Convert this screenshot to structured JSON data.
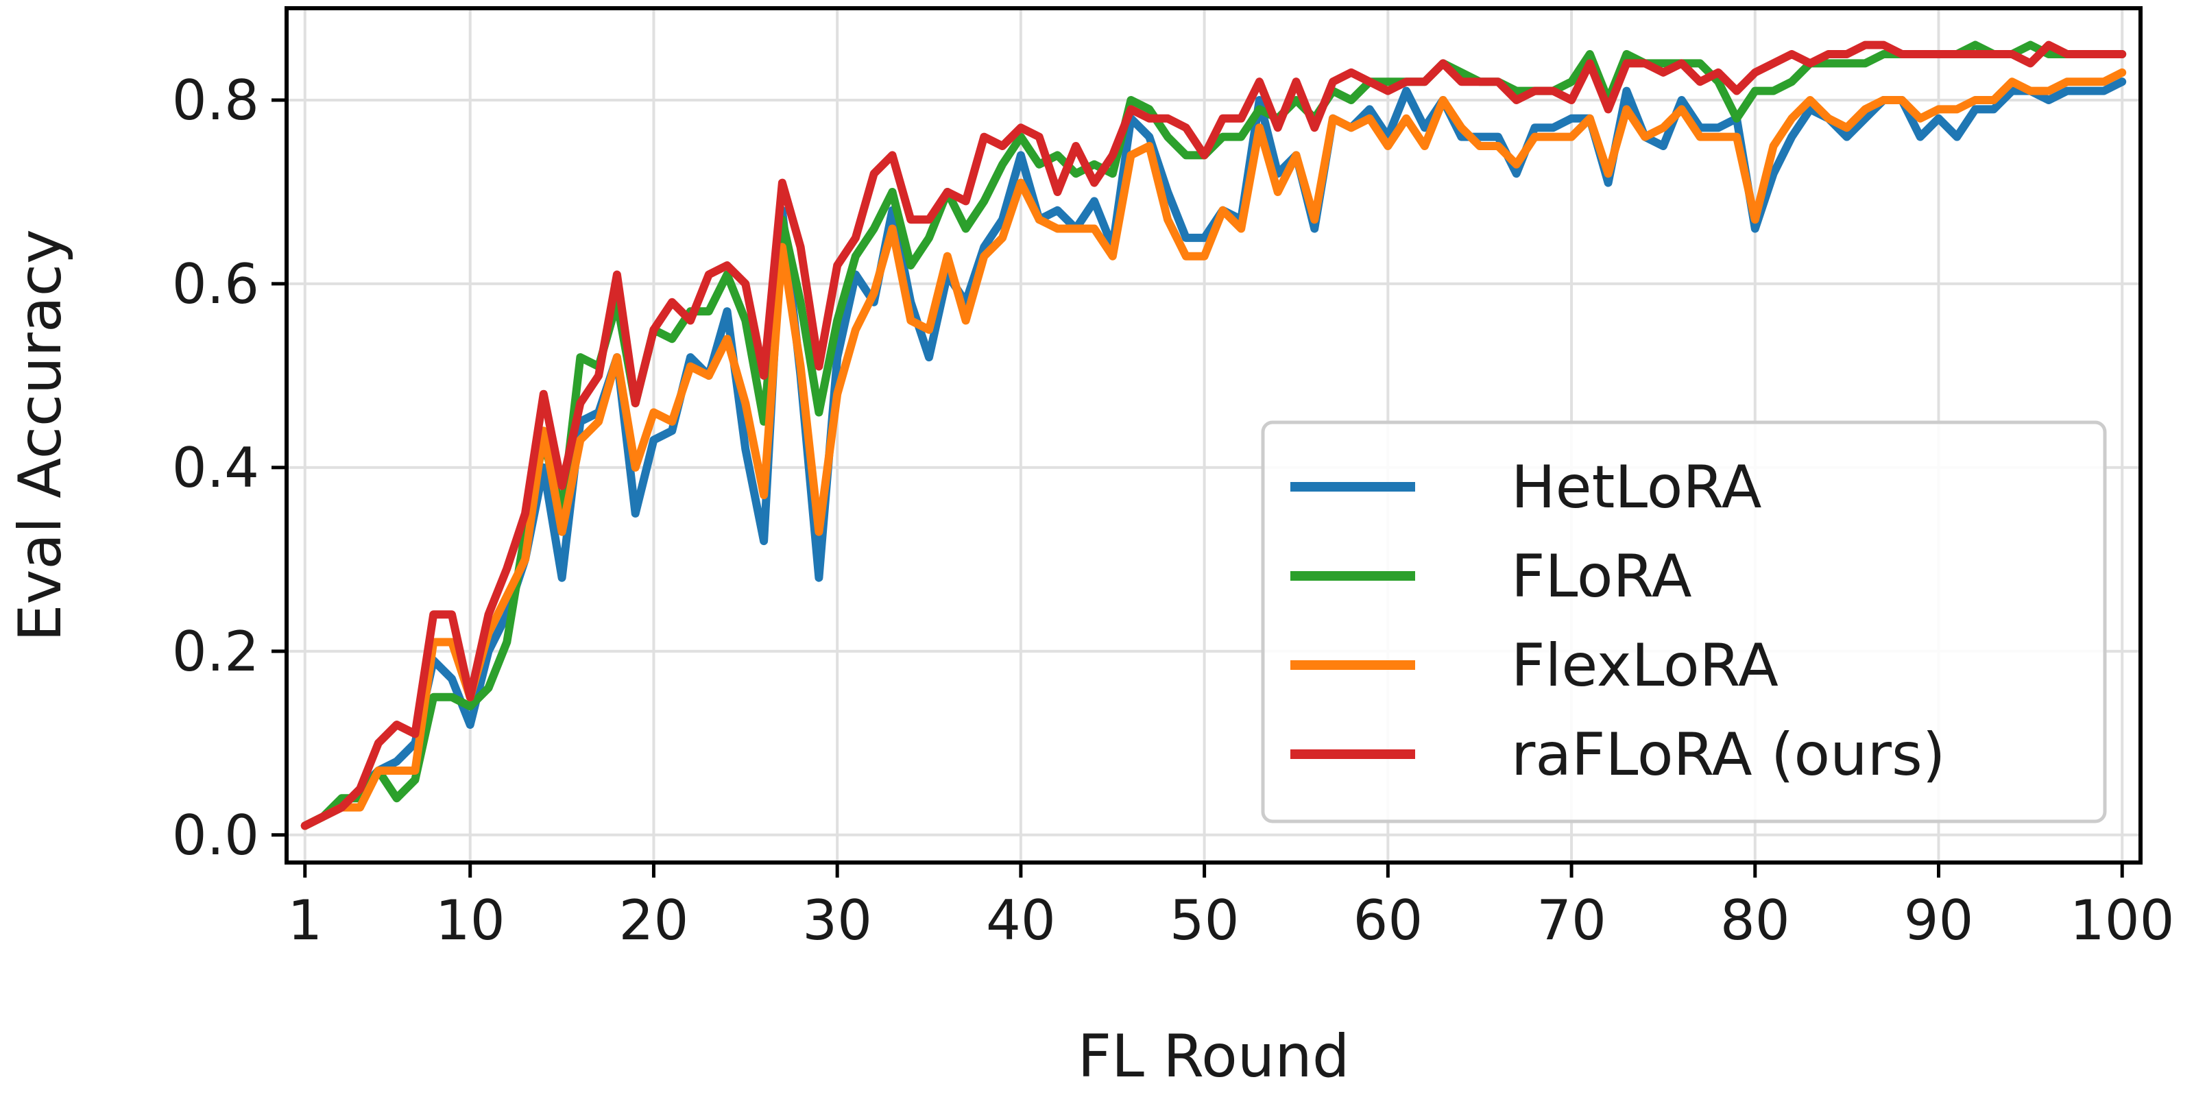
{
  "chart_data": {
    "type": "line",
    "title": "",
    "xlabel": "FL Round",
    "ylabel": "Eval Accuracy",
    "xlim": [
      0,
      101
    ],
    "ylim": [
      -0.03,
      0.9
    ],
    "x_ticks": [
      1,
      10,
      20,
      30,
      40,
      50,
      60,
      70,
      80,
      90,
      100
    ],
    "y_ticks": [
      0.0,
      0.2,
      0.4,
      0.6,
      0.8
    ],
    "y_tick_labels": [
      "0.0",
      "0.2",
      "0.4",
      "0.6",
      "0.8"
    ],
    "grid": true,
    "legend_position": "lower-right",
    "series": [
      {
        "name": "HetLoRA",
        "color": "#1f77b4",
        "x": [
          1,
          2,
          3,
          4,
          5,
          6,
          7,
          8,
          9,
          10,
          11,
          12,
          13,
          14,
          15,
          16,
          17,
          18,
          19,
          20,
          21,
          22,
          23,
          24,
          25,
          26,
          27,
          28,
          29,
          30,
          31,
          32,
          33,
          34,
          35,
          36,
          37,
          38,
          39,
          40,
          41,
          42,
          43,
          44,
          45,
          46,
          47,
          48,
          49,
          50,
          51,
          52,
          53,
          54,
          55,
          56,
          57,
          58,
          59,
          60,
          61,
          62,
          63,
          64,
          65,
          66,
          67,
          68,
          69,
          70,
          71,
          72,
          73,
          74,
          75,
          76,
          77,
          78,
          79,
          80,
          81,
          82,
          83,
          84,
          85,
          86,
          87,
          88,
          89,
          90,
          91,
          92,
          93,
          94,
          95,
          96,
          97,
          98,
          99,
          100
        ],
        "values": [
          0.01,
          0.02,
          0.03,
          0.05,
          0.07,
          0.08,
          0.1,
          0.19,
          0.17,
          0.12,
          0.2,
          0.24,
          0.3,
          0.4,
          0.28,
          0.45,
          0.46,
          0.52,
          0.35,
          0.43,
          0.44,
          0.52,
          0.5,
          0.57,
          0.42,
          0.32,
          0.68,
          0.5,
          0.28,
          0.52,
          0.61,
          0.58,
          0.68,
          0.58,
          0.52,
          0.61,
          0.58,
          0.64,
          0.67,
          0.74,
          0.67,
          0.68,
          0.66,
          0.69,
          0.64,
          0.78,
          0.76,
          0.7,
          0.65,
          0.65,
          0.68,
          0.67,
          0.8,
          0.72,
          0.74,
          0.66,
          0.78,
          0.77,
          0.79,
          0.76,
          0.81,
          0.77,
          0.8,
          0.76,
          0.76,
          0.76,
          0.72,
          0.77,
          0.77,
          0.78,
          0.78,
          0.71,
          0.81,
          0.76,
          0.75,
          0.8,
          0.77,
          0.77,
          0.78,
          0.66,
          0.72,
          0.76,
          0.79,
          0.78,
          0.76,
          0.78,
          0.8,
          0.8,
          0.76,
          0.78,
          0.76,
          0.79,
          0.79,
          0.81,
          0.81,
          0.8,
          0.81,
          0.81,
          0.81,
          0.82
        ]
      },
      {
        "name": "FLoRA",
        "color": "#2ca02c",
        "x": [
          1,
          2,
          3,
          4,
          5,
          6,
          7,
          8,
          9,
          10,
          11,
          12,
          13,
          14,
          15,
          16,
          17,
          18,
          19,
          20,
          21,
          22,
          23,
          24,
          25,
          26,
          27,
          28,
          29,
          30,
          31,
          32,
          33,
          34,
          35,
          36,
          37,
          38,
          39,
          40,
          41,
          42,
          43,
          44,
          45,
          46,
          47,
          48,
          49,
          50,
          51,
          52,
          53,
          54,
          55,
          56,
          57,
          58,
          59,
          60,
          61,
          62,
          63,
          64,
          65,
          66,
          67,
          68,
          69,
          70,
          71,
          72,
          73,
          74,
          75,
          76,
          77,
          78,
          79,
          80,
          81,
          82,
          83,
          84,
          85,
          86,
          87,
          88,
          89,
          90,
          91,
          92,
          93,
          94,
          95,
          96,
          97,
          98,
          99,
          100
        ],
        "values": [
          0.01,
          0.02,
          0.04,
          0.04,
          0.07,
          0.04,
          0.06,
          0.15,
          0.15,
          0.14,
          0.16,
          0.21,
          0.33,
          0.43,
          0.35,
          0.52,
          0.51,
          0.58,
          0.47,
          0.55,
          0.54,
          0.57,
          0.57,
          0.61,
          0.56,
          0.45,
          0.67,
          0.58,
          0.46,
          0.56,
          0.63,
          0.66,
          0.7,
          0.62,
          0.65,
          0.7,
          0.66,
          0.69,
          0.73,
          0.76,
          0.73,
          0.74,
          0.72,
          0.73,
          0.72,
          0.8,
          0.79,
          0.76,
          0.74,
          0.74,
          0.76,
          0.76,
          0.79,
          0.78,
          0.8,
          0.78,
          0.81,
          0.8,
          0.82,
          0.82,
          0.82,
          0.82,
          0.84,
          0.83,
          0.82,
          0.82,
          0.81,
          0.81,
          0.81,
          0.82,
          0.85,
          0.8,
          0.85,
          0.84,
          0.84,
          0.84,
          0.84,
          0.82,
          0.78,
          0.81,
          0.81,
          0.82,
          0.84,
          0.84,
          0.84,
          0.84,
          0.85,
          0.85,
          0.85,
          0.85,
          0.85,
          0.86,
          0.85,
          0.85,
          0.86,
          0.85,
          0.85,
          0.85,
          0.85,
          0.85
        ]
      },
      {
        "name": "FlexLoRA",
        "color": "#ff7f0e",
        "x": [
          1,
          2,
          3,
          4,
          5,
          6,
          7,
          8,
          9,
          10,
          11,
          12,
          13,
          14,
          15,
          16,
          17,
          18,
          19,
          20,
          21,
          22,
          23,
          24,
          25,
          26,
          27,
          28,
          29,
          30,
          31,
          32,
          33,
          34,
          35,
          36,
          37,
          38,
          39,
          40,
          41,
          42,
          43,
          44,
          45,
          46,
          47,
          48,
          49,
          50,
          51,
          52,
          53,
          54,
          55,
          56,
          57,
          58,
          59,
          60,
          61,
          62,
          63,
          64,
          65,
          66,
          67,
          68,
          69,
          70,
          71,
          72,
          73,
          74,
          75,
          76,
          77,
          78,
          79,
          80,
          81,
          82,
          83,
          84,
          85,
          86,
          87,
          88,
          89,
          90,
          91,
          92,
          93,
          94,
          95,
          96,
          97,
          98,
          99,
          100
        ],
        "values": [
          0.01,
          0.02,
          0.03,
          0.03,
          0.07,
          0.07,
          0.07,
          0.21,
          0.21,
          0.15,
          0.22,
          0.26,
          0.3,
          0.44,
          0.33,
          0.43,
          0.45,
          0.52,
          0.4,
          0.46,
          0.45,
          0.51,
          0.5,
          0.54,
          0.47,
          0.37,
          0.64,
          0.51,
          0.33,
          0.48,
          0.55,
          0.59,
          0.66,
          0.56,
          0.55,
          0.63,
          0.56,
          0.63,
          0.65,
          0.71,
          0.67,
          0.66,
          0.66,
          0.66,
          0.63,
          0.74,
          0.75,
          0.67,
          0.63,
          0.63,
          0.68,
          0.66,
          0.77,
          0.7,
          0.74,
          0.67,
          0.78,
          0.77,
          0.78,
          0.75,
          0.78,
          0.75,
          0.8,
          0.77,
          0.75,
          0.75,
          0.73,
          0.76,
          0.76,
          0.76,
          0.78,
          0.72,
          0.79,
          0.76,
          0.77,
          0.79,
          0.76,
          0.76,
          0.76,
          0.67,
          0.75,
          0.78,
          0.8,
          0.78,
          0.77,
          0.79,
          0.8,
          0.8,
          0.78,
          0.79,
          0.79,
          0.8,
          0.8,
          0.82,
          0.81,
          0.81,
          0.82,
          0.82,
          0.82,
          0.83
        ]
      },
      {
        "name": "raFLoRA (ours)",
        "color": "#d62728",
        "x": [
          1,
          2,
          3,
          4,
          5,
          6,
          7,
          8,
          9,
          10,
          11,
          12,
          13,
          14,
          15,
          16,
          17,
          18,
          19,
          20,
          21,
          22,
          23,
          24,
          25,
          26,
          27,
          28,
          29,
          30,
          31,
          32,
          33,
          34,
          35,
          36,
          37,
          38,
          39,
          40,
          41,
          42,
          43,
          44,
          45,
          46,
          47,
          48,
          49,
          50,
          51,
          52,
          53,
          54,
          55,
          56,
          57,
          58,
          59,
          60,
          61,
          62,
          63,
          64,
          65,
          66,
          67,
          68,
          69,
          70,
          71,
          72,
          73,
          74,
          75,
          76,
          77,
          78,
          79,
          80,
          81,
          82,
          83,
          84,
          85,
          86,
          87,
          88,
          89,
          90,
          91,
          92,
          93,
          94,
          95,
          96,
          97,
          98,
          99,
          100
        ],
        "values": [
          0.01,
          0.02,
          0.03,
          0.05,
          0.1,
          0.12,
          0.11,
          0.24,
          0.24,
          0.15,
          0.24,
          0.29,
          0.35,
          0.48,
          0.38,
          0.47,
          0.5,
          0.61,
          0.47,
          0.55,
          0.58,
          0.56,
          0.61,
          0.62,
          0.6,
          0.5,
          0.71,
          0.64,
          0.51,
          0.62,
          0.65,
          0.72,
          0.74,
          0.67,
          0.67,
          0.7,
          0.69,
          0.76,
          0.75,
          0.77,
          0.76,
          0.7,
          0.75,
          0.71,
          0.74,
          0.79,
          0.78,
          0.78,
          0.77,
          0.74,
          0.78,
          0.78,
          0.82,
          0.77,
          0.82,
          0.77,
          0.82,
          0.83,
          0.82,
          0.81,
          0.82,
          0.82,
          0.84,
          0.82,
          0.82,
          0.82,
          0.8,
          0.81,
          0.81,
          0.8,
          0.84,
          0.79,
          0.84,
          0.84,
          0.83,
          0.84,
          0.82,
          0.83,
          0.81,
          0.83,
          0.84,
          0.85,
          0.84,
          0.85,
          0.85,
          0.86,
          0.86,
          0.85,
          0.85,
          0.85,
          0.85,
          0.85,
          0.85,
          0.85,
          0.84,
          0.86,
          0.85,
          0.85,
          0.85,
          0.85
        ]
      }
    ]
  }
}
